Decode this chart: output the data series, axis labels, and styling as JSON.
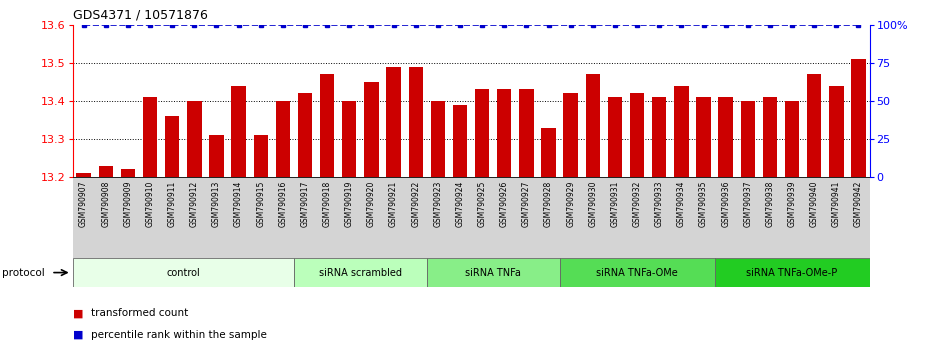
{
  "title": "GDS4371 / 10571876",
  "samples": [
    "GSM790907",
    "GSM790908",
    "GSM790909",
    "GSM790910",
    "GSM790911",
    "GSM790912",
    "GSM790913",
    "GSM790914",
    "GSM790915",
    "GSM790916",
    "GSM790917",
    "GSM790918",
    "GSM790919",
    "GSM790920",
    "GSM790921",
    "GSM790922",
    "GSM790923",
    "GSM790924",
    "GSM790925",
    "GSM790926",
    "GSM790927",
    "GSM790928",
    "GSM790929",
    "GSM790930",
    "GSM790931",
    "GSM790932",
    "GSM790933",
    "GSM790934",
    "GSM790935",
    "GSM790936",
    "GSM790937",
    "GSM790938",
    "GSM790939",
    "GSM790940",
    "GSM790941",
    "GSM790942"
  ],
  "bar_values": [
    13.21,
    13.23,
    13.22,
    13.41,
    13.36,
    13.4,
    13.31,
    13.44,
    13.31,
    13.4,
    13.42,
    13.47,
    13.4,
    13.45,
    13.49,
    13.49,
    13.4,
    13.39,
    13.43,
    13.43,
    13.43,
    13.33,
    13.42,
    13.47,
    13.41,
    13.42,
    13.41,
    13.44,
    13.41,
    13.41,
    13.4,
    13.41,
    13.4,
    13.47,
    13.44,
    13.51
  ],
  "bar_color": "#cc0000",
  "percentile_color": "#0000cc",
  "percentile_value": 100,
  "ylim_left": [
    13.2,
    13.6
  ],
  "ylim_right": [
    0,
    100
  ],
  "yticks_left": [
    13.2,
    13.3,
    13.4,
    13.5,
    13.6
  ],
  "yticks_right": [
    0,
    25,
    50,
    75,
    100
  ],
  "ytick_right_labels": [
    "0",
    "25",
    "50",
    "75",
    "100%"
  ],
  "hgrid_lines": [
    13.3,
    13.4,
    13.5
  ],
  "groups": [
    {
      "label": "control",
      "start": 0,
      "end": 9,
      "color": "#e8ffe8"
    },
    {
      "label": "siRNA scrambled",
      "start": 10,
      "end": 15,
      "color": "#bbffbb"
    },
    {
      "label": "siRNA TNFa",
      "start": 16,
      "end": 21,
      "color": "#88ee88"
    },
    {
      "label": "siRNA TNFa-OMe",
      "start": 22,
      "end": 28,
      "color": "#55dd55"
    },
    {
      "label": "siRNA TNFa-OMe-P",
      "start": 29,
      "end": 35,
      "color": "#22cc22"
    }
  ],
  "protocol_label": "protocol",
  "legend_red_label": "transformed count",
  "legend_blue_label": "percentile rank within the sample",
  "xtick_bg": "#d4d4d4",
  "group_border": "#666666",
  "bg_main": "#ffffff"
}
